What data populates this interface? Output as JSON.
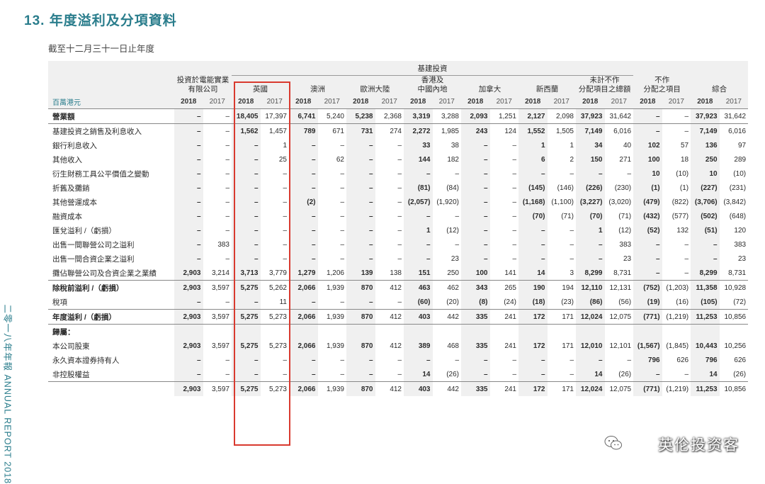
{
  "header": {
    "section_title": "13. 年度溢利及分項資料",
    "subtitle": "截至十二月三十一日止年度"
  },
  "side_text": "二零一八年年報 ANNUAL REPORT 2018",
  "watermark": "英伦投资客",
  "table": {
    "group_header": "基建投資",
    "unit_label": "百萬港元",
    "columns": [
      "投資於電能實業\n有限公司",
      "英國",
      "澳洲",
      "歐洲大陸",
      "香港及\n中國內地",
      "加拿大",
      "新西蘭",
      "未計不作\n分配項目之總額",
      "不作\n分配之項目",
      "綜合"
    ],
    "years": [
      "2018",
      "2017"
    ],
    "rows": [
      {
        "label": "營業額",
        "bold": true,
        "sep": true,
        "values": [
          "–",
          "–",
          "18,405",
          "17,397",
          "6,741",
          "5,240",
          "5,238",
          "2,368",
          "3,319",
          "3,288",
          "2,093",
          "1,251",
          "2,127",
          "2,098",
          "37,923",
          "31,642",
          "–",
          "–",
          "37,923",
          "31,642"
        ]
      },
      {
        "label": "基建投資之銷售及利息收入",
        "sep": true,
        "values": [
          "–",
          "–",
          "1,562",
          "1,457",
          "789",
          "671",
          "731",
          "274",
          "2,272",
          "1,985",
          "243",
          "124",
          "1,552",
          "1,505",
          "7,149",
          "6,016",
          "–",
          "–",
          "7,149",
          "6,016"
        ]
      },
      {
        "label": "銀行利息收入",
        "values": [
          "–",
          "–",
          "–",
          "1",
          "–",
          "–",
          "–",
          "–",
          "33",
          "38",
          "–",
          "–",
          "1",
          "1",
          "34",
          "40",
          "102",
          "57",
          "136",
          "97"
        ]
      },
      {
        "label": "其他收入",
        "values": [
          "–",
          "–",
          "–",
          "25",
          "–",
          "62",
          "–",
          "–",
          "144",
          "182",
          "–",
          "–",
          "6",
          "2",
          "150",
          "271",
          "100",
          "18",
          "250",
          "289"
        ]
      },
      {
        "label": "衍生財務工具公平價值之變動",
        "values": [
          "–",
          "–",
          "–",
          "–",
          "–",
          "–",
          "–",
          "–",
          "–",
          "–",
          "–",
          "–",
          "–",
          "–",
          "–",
          "–",
          "10",
          "(10)",
          "10",
          "(10)"
        ]
      },
      {
        "label": "折舊及攤銷",
        "values": [
          "–",
          "–",
          "–",
          "–",
          "–",
          "–",
          "–",
          "–",
          "(81)",
          "(84)",
          "–",
          "–",
          "(145)",
          "(146)",
          "(226)",
          "(230)",
          "(1)",
          "(1)",
          "(227)",
          "(231)"
        ]
      },
      {
        "label": "其他營運成本",
        "values": [
          "–",
          "–",
          "–",
          "–",
          "(2)",
          "–",
          "–",
          "–",
          "(2,057)",
          "(1,920)",
          "–",
          "–",
          "(1,168)",
          "(1,100)",
          "(3,227)",
          "(3,020)",
          "(479)",
          "(822)",
          "(3,706)",
          "(3,842)"
        ]
      },
      {
        "label": "融資成本",
        "values": [
          "–",
          "–",
          "–",
          "–",
          "–",
          "–",
          "–",
          "–",
          "–",
          "–",
          "–",
          "–",
          "(70)",
          "(71)",
          "(70)",
          "(71)",
          "(432)",
          "(577)",
          "(502)",
          "(648)"
        ]
      },
      {
        "label": "匯兌溢利 /（虧損）",
        "values": [
          "–",
          "–",
          "–",
          "–",
          "–",
          "–",
          "–",
          "–",
          "1",
          "(12)",
          "–",
          "–",
          "–",
          "–",
          "1",
          "(12)",
          "(52)",
          "132",
          "(51)",
          "120"
        ]
      },
      {
        "label": "出售一間聯營公司之溢利",
        "values": [
          "–",
          "383",
          "–",
          "–",
          "–",
          "–",
          "–",
          "–",
          "–",
          "–",
          "–",
          "–",
          "–",
          "–",
          "–",
          "383",
          "–",
          "–",
          "–",
          "383"
        ]
      },
      {
        "label": "出售一間合資企業之溢利",
        "values": [
          "–",
          "–",
          "–",
          "–",
          "–",
          "–",
          "–",
          "–",
          "–",
          "23",
          "–",
          "–",
          "–",
          "–",
          "–",
          "23",
          "–",
          "–",
          "–",
          "23"
        ]
      },
      {
        "label": "攤佔聯營公司及合資企業之業績",
        "values": [
          "2,903",
          "3,214",
          "3,713",
          "3,779",
          "1,279",
          "1,206",
          "139",
          "138",
          "151",
          "250",
          "100",
          "141",
          "14",
          "3",
          "8,299",
          "8,731",
          "–",
          "–",
          "8,299",
          "8,731"
        ]
      },
      {
        "label": "除稅前溢利 /（虧損）",
        "bold": true,
        "sep": true,
        "values": [
          "2,903",
          "3,597",
          "5,275",
          "5,262",
          "2,066",
          "1,939",
          "870",
          "412",
          "463",
          "462",
          "343",
          "265",
          "190",
          "194",
          "12,110",
          "12,131",
          "(752)",
          "(1,203)",
          "11,358",
          "10,928"
        ]
      },
      {
        "label": "稅項",
        "values": [
          "–",
          "–",
          "–",
          "11",
          "–",
          "–",
          "–",
          "–",
          "(60)",
          "(20)",
          "(8)",
          "(24)",
          "(18)",
          "(23)",
          "(86)",
          "(56)",
          "(19)",
          "(16)",
          "(105)",
          "(72)"
        ]
      },
      {
        "label": "年度溢利 /（虧損）",
        "bold": true,
        "sep": true,
        "values": [
          "2,903",
          "3,597",
          "5,275",
          "5,273",
          "2,066",
          "1,939",
          "870",
          "412",
          "403",
          "442",
          "335",
          "241",
          "172",
          "171",
          "12,024",
          "12,075",
          "(771)",
          "(1,219)",
          "11,253",
          "10,856"
        ]
      },
      {
        "label": "歸屬：",
        "bold": true,
        "sep": true,
        "values": [
          "",
          "",
          "",
          "",
          "",
          "",
          "",
          "",
          "",
          "",
          "",
          "",
          "",
          "",
          "",
          "",
          "",
          "",
          "",
          ""
        ]
      },
      {
        "label": "本公司股東",
        "values": [
          "2,903",
          "3,597",
          "5,275",
          "5,273",
          "2,066",
          "1,939",
          "870",
          "412",
          "389",
          "468",
          "335",
          "241",
          "172",
          "171",
          "12,010",
          "12,101",
          "(1,567)",
          "(1,845)",
          "10,443",
          "10,256"
        ]
      },
      {
        "label": "永久資本證券持有人",
        "values": [
          "–",
          "–",
          "–",
          "–",
          "–",
          "–",
          "–",
          "–",
          "–",
          "–",
          "–",
          "–",
          "–",
          "–",
          "–",
          "–",
          "796",
          "626",
          "796",
          "626"
        ]
      },
      {
        "label": "非控股權益",
        "values": [
          "–",
          "–",
          "–",
          "–",
          "–",
          "–",
          "–",
          "–",
          "14",
          "(26)",
          "–",
          "–",
          "–",
          "–",
          "14",
          "(26)",
          "–",
          "–",
          "14",
          "(26)"
        ]
      },
      {
        "label": "",
        "bold": true,
        "sep": true,
        "values": [
          "2,903",
          "3,597",
          "5,275",
          "5,273",
          "2,066",
          "1,939",
          "870",
          "412",
          "403",
          "442",
          "335",
          "241",
          "172",
          "171",
          "12,024",
          "12,075",
          "(771)",
          "(1,219)",
          "11,253",
          "10,856"
        ]
      }
    ]
  }
}
